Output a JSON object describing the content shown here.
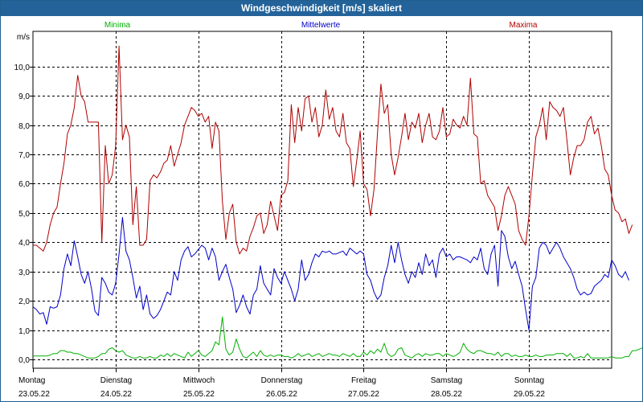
{
  "window": {
    "title": "Windgeschwindigkeit [m/s] skaliert"
  },
  "chart_data": {
    "type": "line",
    "title": "Windgeschwindigkeit [m/s] skaliert",
    "ylabel": "m/s",
    "xlabel": "",
    "ylim": [
      -0.3,
      11.2
    ],
    "xlim": [
      0,
      168
    ],
    "yticks": [
      0,
      1,
      2,
      3,
      4,
      5,
      6,
      7,
      8,
      9,
      10
    ],
    "ytick_labels": [
      "0,0",
      "1,0",
      "2,0",
      "3,0",
      "4,0",
      "5,0",
      "6,0",
      "7,0",
      "8,0",
      "9,0",
      "10,0"
    ],
    "grid": true,
    "legend_placement": "top",
    "days": [
      {
        "x": 0,
        "name": "Montag",
        "date": "23.05.22"
      },
      {
        "x": 24,
        "name": "Dienstag",
        "date": "24.05.22"
      },
      {
        "x": 48,
        "name": "Mittwoch",
        "date": "25.05.22"
      },
      {
        "x": 72,
        "name": "Donnerstag",
        "date": "26.05.22"
      },
      {
        "x": 96,
        "name": "Freitag",
        "date": "27.05.22"
      },
      {
        "x": 120,
        "name": "Samstag",
        "date": "28.05.22"
      },
      {
        "x": 144,
        "name": "Sonntag",
        "date": "29.05.22"
      }
    ],
    "x_hours_step": 1,
    "series": [
      {
        "name": "Minima",
        "color": "#00b000",
        "values": [
          0.12,
          0.12,
          0.12,
          0.12,
          0.12,
          0.15,
          0.2,
          0.2,
          0.3,
          0.3,
          0.25,
          0.25,
          0.2,
          0.2,
          0.15,
          0.1,
          0.05,
          0.05,
          0.05,
          0.1,
          0.2,
          0.2,
          0.35,
          0.4,
          0.3,
          0.25,
          0.3,
          0.15,
          0.1,
          0.05,
          0.05,
          0.1,
          0.05,
          0.05,
          0.1,
          0.05,
          0.05,
          0.15,
          0.1,
          0.2,
          0.1,
          0.2,
          0.15,
          0.1,
          0.05,
          0.25,
          0.1,
          0.2,
          0.3,
          0.15,
          0.1,
          0.2,
          0.3,
          0.6,
          0.5,
          1.45,
          0.35,
          0.15,
          0.25,
          0.7,
          0.35,
          0.1,
          0.05,
          0.15,
          0.25,
          0.1,
          0.3,
          0.15,
          0.1,
          0.15,
          0.1,
          0.15,
          0.15,
          0.1,
          0.1,
          0.05,
          0.1,
          0.2,
          0.1,
          0.15,
          0.2,
          0.1,
          0.15,
          0.2,
          0.1,
          0.15,
          0.2,
          0.15,
          0.15,
          0.1,
          0.2,
          0.15,
          0.1,
          0.2,
          0.1,
          0.1,
          0.25,
          0.15,
          0.3,
          0.2,
          0.35,
          0.25,
          0.55,
          0.2,
          0.1,
          0.15,
          0.35,
          0.4,
          0.15,
          0.1,
          0.05,
          0.15,
          0.2,
          0.1,
          0.2,
          0.15,
          0.15,
          0.2,
          0.2,
          0.1,
          0.2,
          0.15,
          0.1,
          0.15,
          0.25,
          0.55,
          0.35,
          0.25,
          0.2,
          0.3,
          0.3,
          0.25,
          0.2,
          0.2,
          0.15,
          0.25,
          0.1,
          0.2,
          0.2,
          0.1,
          0.15,
          0.1,
          0.1,
          0.15,
          0.1,
          0.1,
          0.15,
          0.1,
          0.1,
          0.15,
          0.15,
          0.15,
          0.2,
          0.2,
          0.2,
          0.1,
          0.2,
          0.05,
          0.05,
          0.1,
          0.05,
          0.2,
          0.05,
          0.05,
          0.05,
          0.05,
          0.05,
          0.05,
          0.1,
          0.05,
          0.05,
          0.05,
          0.1,
          0.1,
          0.3,
          0.3,
          0.35,
          0.4
        ]
      },
      {
        "name": "Mittelwerte",
        "color": "#0000c8",
        "values": [
          1.8,
          1.7,
          1.55,
          1.6,
          1.2,
          1.8,
          1.75,
          1.8,
          2.2,
          3.1,
          3.6,
          3.2,
          4.05,
          3.5,
          2.9,
          2.6,
          3.0,
          2.4,
          1.65,
          1.5,
          2.8,
          2.6,
          2.3,
          2.2,
          2.6,
          3.6,
          4.85,
          3.7,
          3.4,
          2.8,
          2.1,
          2.5,
          1.7,
          2.2,
          1.55,
          1.4,
          1.5,
          1.7,
          2.0,
          2.3,
          2.2,
          3.0,
          2.7,
          3.4,
          3.7,
          3.85,
          3.5,
          3.6,
          3.75,
          3.9,
          3.8,
          3.4,
          3.8,
          3.5,
          2.7,
          3.0,
          3.25,
          2.8,
          2.4,
          1.6,
          1.85,
          2.2,
          1.8,
          1.55,
          2.2,
          2.4,
          3.2,
          2.6,
          2.4,
          2.2,
          3.1,
          2.8,
          2.6,
          3.0,
          2.7,
          2.4,
          2.0,
          2.4,
          3.4,
          2.7,
          2.9,
          3.3,
          3.6,
          3.5,
          3.7,
          3.65,
          3.7,
          3.6,
          3.6,
          3.65,
          3.7,
          3.55,
          3.8,
          3.7,
          3.6,
          3.7,
          3.6,
          2.9,
          2.7,
          2.3,
          2.05,
          2.2,
          2.8,
          3.2,
          3.9,
          3.3,
          4.0,
          3.4,
          2.9,
          2.6,
          3.0,
          2.8,
          3.3,
          2.9,
          3.6,
          3.2,
          3.4,
          2.8,
          3.6,
          3.8,
          3.5,
          3.6,
          3.4,
          3.5,
          3.5,
          3.45,
          3.4,
          3.3,
          3.5,
          3.4,
          3.8,
          3.1,
          2.9,
          3.6,
          3.9,
          2.5,
          4.4,
          4.2,
          3.5,
          3.1,
          3.35,
          2.9,
          2.5,
          1.7,
          1.0,
          2.5,
          2.8,
          3.8,
          4.0,
          3.9,
          3.6,
          3.8,
          4.0,
          3.8,
          3.5,
          3.3,
          3.1,
          2.8,
          2.4,
          2.2,
          2.3,
          2.2,
          2.25,
          2.5,
          2.6,
          2.7,
          2.9,
          2.8,
          3.4,
          3.2,
          2.9,
          2.8,
          3.0,
          2.7
        ]
      },
      {
        "name": "Maxima",
        "color": "#b00000",
        "values": [
          3.9,
          3.9,
          3.8,
          3.7,
          4.0,
          4.6,
          5.0,
          5.2,
          6.0,
          6.7,
          7.7,
          8.0,
          8.6,
          9.7,
          9.0,
          8.8,
          8.1,
          8.1,
          8.1,
          8.1,
          4.0,
          7.3,
          6.0,
          6.3,
          7.3,
          10.7,
          7.5,
          8.0,
          7.6,
          4.6,
          5.9,
          3.9,
          3.9,
          4.1,
          6.1,
          6.3,
          6.2,
          6.4,
          6.7,
          6.8,
          7.3,
          6.6,
          7.0,
          7.4,
          8.0,
          8.3,
          8.6,
          8.5,
          8.3,
          8.4,
          8.1,
          8.3,
          7.2,
          8.1,
          7.8,
          5.4,
          4.1,
          5.0,
          5.3,
          4.0,
          3.6,
          3.8,
          3.7,
          4.2,
          4.5,
          4.9,
          5.0,
          4.3,
          4.6,
          5.4,
          4.9,
          4.4,
          5.6,
          5.7,
          6.1,
          8.7,
          7.4,
          8.6,
          7.8,
          8.9,
          9.0,
          8.1,
          8.6,
          7.6,
          8.0,
          9.2,
          8.2,
          8.6,
          7.8,
          7.6,
          8.4,
          7.4,
          7.2,
          5.9,
          6.8,
          7.8,
          6.0,
          5.8,
          4.9,
          5.8,
          7.7,
          9.4,
          8.4,
          8.7,
          7.0,
          6.3,
          6.9,
          7.6,
          8.4,
          7.5,
          8.1,
          7.9,
          8.4,
          7.4,
          8.0,
          8.4,
          7.6,
          7.5,
          7.8,
          8.6,
          7.6,
          7.7,
          8.2,
          8.0,
          7.9,
          8.3,
          8.0,
          9.6,
          7.7,
          7.6,
          6.0,
          6.1,
          5.6,
          5.4,
          5.2,
          4.4,
          4.9,
          5.6,
          5.9,
          5.6,
          5.3,
          4.4,
          4.1,
          3.9,
          4.9,
          6.3,
          7.6,
          8.0,
          8.6,
          7.5,
          8.8,
          8.6,
          8.5,
          8.3,
          8.6,
          7.5,
          6.3,
          6.9,
          7.3,
          7.3,
          7.5,
          8.1,
          8.3,
          7.7,
          7.9,
          7.3,
          6.5,
          6.3,
          5.6,
          5.1,
          5.0,
          4.7,
          4.8,
          4.3,
          4.6
        ]
      }
    ]
  }
}
